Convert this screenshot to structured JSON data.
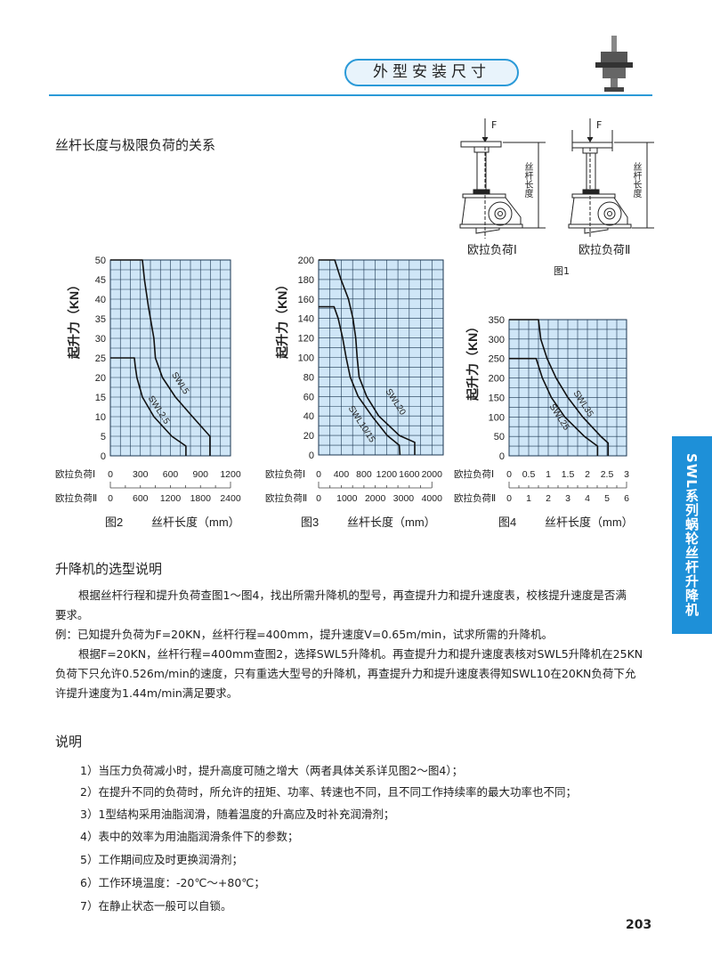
{
  "header": {
    "title": "外型安装尺寸",
    "accent": "#2b9ad8"
  },
  "side_tab": {
    "label": "SWL系列蜗轮丝杆升降机",
    "color": "#1e90d8"
  },
  "section1": {
    "title": "丝杆长度与极限负荷的关系"
  },
  "figure1": {
    "force_label": "F",
    "length_label": "丝杆长度",
    "left_caption": "欧拉负荷Ⅰ",
    "right_caption": "欧拉负荷Ⅱ",
    "caption": "图1"
  },
  "chart_labels": {
    "euler1": "欧拉负荷Ⅰ",
    "euler2": "欧拉负荷Ⅱ",
    "xlabel": "丝杆长度（mm）",
    "ylabel": "起升力（KN）"
  },
  "chart_data": [
    {
      "type": "line",
      "figure": "图2",
      "ylabel": "起升力（KN）",
      "xlabel": "丝杆长度（mm）",
      "ylim": [
        0,
        50
      ],
      "yticks": [
        0,
        5,
        10,
        15,
        20,
        25,
        30,
        35,
        40,
        45,
        50
      ],
      "xlim": [
        0,
        1200
      ],
      "grid": true,
      "grid_color": "#cfe6f7",
      "x_euler1_ticks": [
        "0",
        "300",
        "600",
        "900",
        "1200"
      ],
      "x_euler2_ticks": [
        "0",
        "600",
        "1200",
        "1800",
        "2400"
      ],
      "series": [
        {
          "name": "SWL5",
          "x": [
            0,
            320,
            340,
            380,
            435,
            450,
            520,
            650,
            820,
            995,
            995
          ],
          "y": [
            50,
            50,
            45,
            38,
            30,
            25,
            20,
            15,
            10,
            5,
            0
          ]
        },
        {
          "name": "SWL2.5",
          "x": [
            0,
            240,
            248,
            265,
            320,
            435,
            613,
            755,
            755
          ],
          "y": [
            25,
            25,
            23,
            20,
            15,
            10,
            5,
            2.5,
            0
          ]
        }
      ]
    },
    {
      "type": "line",
      "figure": "图3",
      "ylabel": "起升力（KN）",
      "xlabel": "丝杆长度（mm）",
      "ylim": [
        0,
        200
      ],
      "yticks": [
        0,
        20,
        40,
        60,
        80,
        100,
        120,
        140,
        160,
        180,
        200
      ],
      "xlim": [
        0,
        2200
      ],
      "grid": true,
      "grid_color": "#cfe6f7",
      "x_euler1_ticks": [
        "0",
        "400",
        "800",
        "1200",
        "1600",
        "2000"
      ],
      "x_euler2_ticks": [
        "0",
        "1000",
        "2000",
        "3000",
        "4000"
      ],
      "series": [
        {
          "name": "SWL20",
          "x": [
            0,
            285,
            394,
            527,
            606,
            655,
            680,
            715,
            848,
            1060,
            1424,
            1697,
            1697
          ],
          "y": [
            200,
            200,
            180,
            160,
            140,
            120,
            100,
            80,
            60,
            40,
            20,
            13,
            0
          ]
        },
        {
          "name": "SWL10/15",
          "x": [
            0,
            273,
            345,
            424,
            485,
            558,
            697,
            940,
            1212,
            1424,
            1436
          ],
          "y": [
            152,
            152,
            140,
            120,
            100,
            80,
            60,
            40,
            20,
            10,
            0
          ]
        }
      ]
    },
    {
      "type": "line",
      "figure": "图4",
      "ylabel": "起升力（KN）",
      "xlabel": "丝杆长度（mm）",
      "ylim": [
        0,
        350
      ],
      "yticks": [
        0,
        50,
        100,
        150,
        200,
        250,
        300,
        350
      ],
      "xlim": [
        0,
        3
      ],
      "grid": true,
      "grid_color": "#cfe6f7",
      "x_euler1_ticks": [
        "0",
        "0.5",
        "1",
        "1.5",
        "2",
        "2.5",
        "3"
      ],
      "x_euler2_ticks": [
        "0",
        "1",
        "2",
        "3",
        "4",
        "5",
        "6"
      ],
      "series": [
        {
          "name": "SWL35",
          "x": [
            0,
            0.75,
            0.81,
            0.97,
            1.2,
            1.5,
            1.88,
            2.34,
            2.53,
            2.53
          ],
          "y": [
            350,
            350,
            300,
            250,
            200,
            150,
            100,
            50,
            33,
            0
          ]
        },
        {
          "name": "SWL25",
          "x": [
            0,
            0.69,
            0.85,
            1.08,
            1.42,
            1.92,
            2.26,
            2.26
          ],
          "y": [
            250,
            250,
            200,
            150,
            100,
            50,
            25,
            0
          ]
        }
      ]
    }
  ],
  "section2": {
    "title": "升降机的选型说明",
    "p1": "根据丝杆行程和提升负荷查图1～图4，找出所需升降机的型号，再查提升力和提升速度表，校核提升速度是否满",
    "p1b": "要求。",
    "p2": "例：已知提升负荷为F=20KN，丝杆行程=400mm，提升速度V=0.65m/min，试求所需的升降机。",
    "p3": "根据F=20KN，丝杆行程=400mm查图2，选择SWL5升降机。再查提升力和提升速度表核对SWL5升降机在25KN",
    "p3b": "负荷下只允许0.526m/min的速度，只有重选大型号的升降机，再查提升力和提升速度表得知SWL10在20KN负荷下允",
    "p3c": "许提升速度为1.44m/min满足要求。"
  },
  "section3": {
    "title": "说明",
    "items": [
      "1）当压力负荷减小时，提升高度可随之增大（两者具体关系详见图2～图4）；",
      "2）在提升不同的负荷时，所允许的扭矩、功率、转速也不同，且不同工作持续率的最大功率也不同；",
      "3）1型结构采用油脂润滑，随着温度的升高应及时补充润滑剂；",
      "4）表中的效率为用油脂润滑条件下的参数；",
      "5）工作期间应及时更换润滑剂；",
      "6）工作环境温度：-20℃～+80℃；",
      "7）在静止状态一般可以自锁。"
    ]
  },
  "page_number": "203"
}
